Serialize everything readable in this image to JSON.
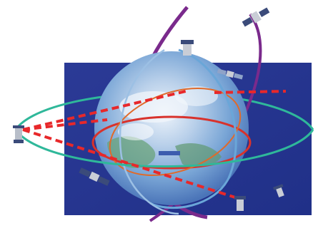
{
  "scene": {
    "description_free": true,
    "colors": {
      "page_background": "#ffffff",
      "space_background": "#2f3f9a",
      "space_background_dark": "#22318a",
      "earth_ocean": "#7aa6d6",
      "earth_cloud": "#dfeaf7",
      "earth_land": "#6aa37a",
      "orbit_green": "#2fb89a",
      "orbit_purple": "#7a2a8c",
      "orbit_red": "#d8322c",
      "orbit_orange": "#e06a2a",
      "signal_red": "#e8282a",
      "satellite_body": "#c9cdd6",
      "satellite_panel": "#3b4b7a"
    },
    "elements": [
      "space-panel",
      "earth-globe",
      "orbit-ring-green",
      "orbit-ring-purple",
      "orbit-ring-red",
      "signal-links",
      "satellites"
    ]
  }
}
